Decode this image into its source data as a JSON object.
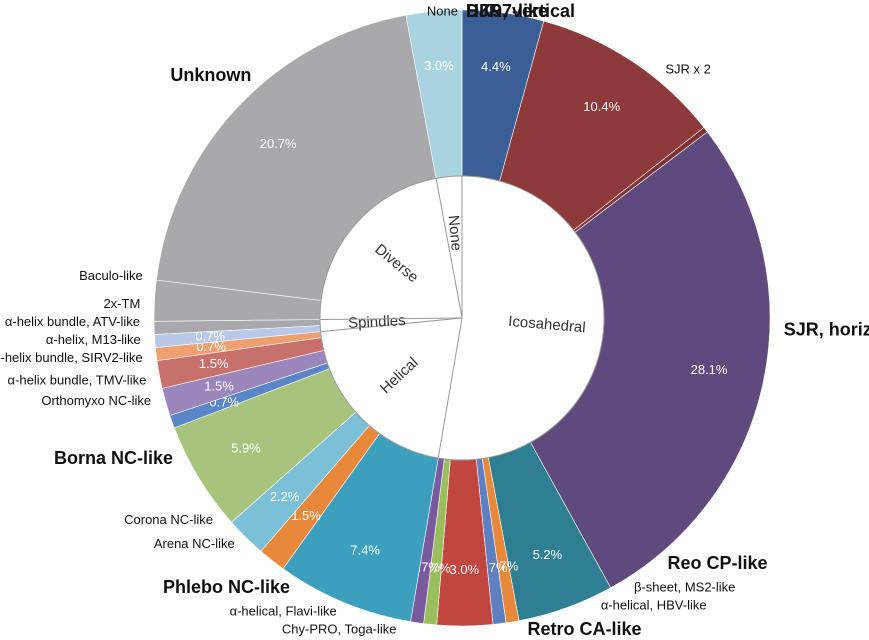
{
  "chart_data": {
    "type": "pie",
    "groups": [
      {
        "name": "Icosahedral",
        "slices": [
          {
            "name": "HK97-like",
            "value": 4.4,
            "value_label": "4.4%",
            "color": "#3a5f96",
            "bold": true
          },
          {
            "name": "DJR, vertical",
            "value": 10.4,
            "value_label": "10.4%",
            "color": "#8f3a3a",
            "bold": true
          },
          {
            "name": "SJR x 2",
            "value": 0.3,
            "color": "#7e3232",
            "bold": false
          },
          {
            "name": "SJR, horizontal",
            "value": 28.1,
            "value_label": "28.1%",
            "color": "#5f4a7d",
            "bold": true
          },
          {
            "name": "Reo CP-like",
            "value": 5.2,
            "value_label": "5.2%",
            "color": "#2e7f91",
            "bold": true
          },
          {
            "name": "β-sheet, MS2-like",
            "value": 0.7,
            "value_label": "0.7%",
            "color": "#e8883a",
            "bold": false
          },
          {
            "name": "α-helical, HBV-like",
            "value": 0.7,
            "value_label": "0.7%",
            "color": "#5e7fc0",
            "bold": false
          },
          {
            "name": "Retro CA-like",
            "value": 3.0,
            "value_label": "3.0%",
            "color": "#c0463f",
            "bold": true
          },
          {
            "name": "Chy-PRO, Toga-like",
            "value": 0.7,
            "value_label": "0.7%",
            "color": "#9bbe5c",
            "bold": false
          },
          {
            "name": "α-helical, Flavi-like",
            "value": 0.7,
            "value_label": "0.7%",
            "color": "#7a5a9e",
            "bold": false
          }
        ]
      },
      {
        "name": "Helical",
        "slices": [
          {
            "name": "Phlebo NC-like",
            "value": 7.4,
            "value_label": "7.4%",
            "color": "#3b9fbd",
            "bold": true
          },
          {
            "name": "Arena NC-like",
            "value": 1.5,
            "value_label": "1.5%",
            "color": "#e8883a",
            "bold": false
          },
          {
            "name": "Corona NC-like",
            "value": 2.2,
            "value_label": "2.2%",
            "color": "#7cc0d8",
            "bold": false
          },
          {
            "name": "Borna NC-like",
            "value": 5.9,
            "value_label": "5.9%",
            "color": "#a8c37c",
            "bold": true
          },
          {
            "name": "Orthomyxo NC-like",
            "value": 0.7,
            "value_label": "0.7%",
            "color": "#5a86c8",
            "bold": false
          },
          {
            "name": "α-helix bundle, TMV-like",
            "value": 1.5,
            "value_label": "1.5%",
            "color": "#9a86ba",
            "bold": false
          },
          {
            "name": "α-helix bundle, SIRV2-like",
            "value": 1.5,
            "value_label": "1.5%",
            "color": "#c8706c",
            "bold": false
          },
          {
            "name": "α-helix, M13-like",
            "value": 0.7,
            "value_label": "0.7%",
            "color": "#f0a070",
            "bold": false
          }
        ]
      },
      {
        "name": "Spindles",
        "slices": [
          {
            "name": "α-helix bundle, ATV-like",
            "value": 0.7,
            "value_label": "0.7%",
            "color": "#b8c8e8",
            "bold": false
          },
          {
            "name": "2x-TM",
            "value": 0.7,
            "color": "#a9a9ad",
            "bold": false
          }
        ]
      },
      {
        "name": "Diverse",
        "slices": [
          {
            "name": "Baculo-like",
            "value": 2.2,
            "color": "#a9a9ad",
            "bold": false
          },
          {
            "name": "Unknown",
            "value": 20.7,
            "value_label": "20.7%",
            "color": "#a9a9ad",
            "bold": true
          }
        ]
      },
      {
        "name": "None",
        "slices": [
          {
            "name": "None",
            "value": 3.0,
            "value_label": "3.0%",
            "color": "#a8d4e0",
            "bold": false
          }
        ]
      }
    ]
  }
}
